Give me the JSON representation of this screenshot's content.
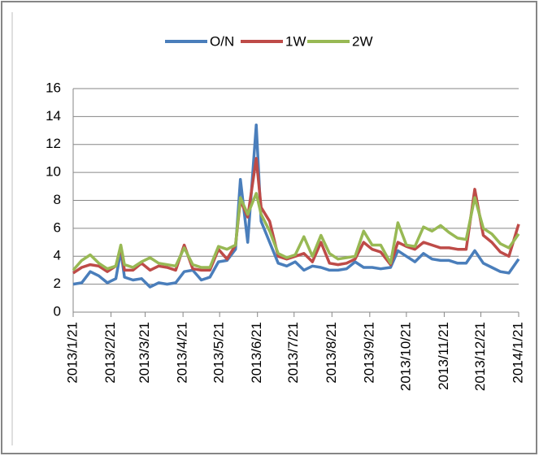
{
  "chart_data": {
    "type": "line",
    "x": [
      "2013/1/21",
      "2013/1/28",
      "2013/2/4",
      "2013/2/11",
      "2013/2/18",
      "2013/2/25",
      "2013/3/1",
      "2013/3/4",
      "2013/3/11",
      "2013/3/18",
      "2013/3/25",
      "2013/4/1",
      "2013/4/8",
      "2013/4/15",
      "2013/4/22",
      "2013/4/29",
      "2013/5/6",
      "2013/5/13",
      "2013/5/20",
      "2013/5/27",
      "2013/6/3",
      "2013/6/7",
      "2013/6/13",
      "2013/6/20",
      "2013/6/24",
      "2013/7/1",
      "2013/7/8",
      "2013/7/15",
      "2013/7/22",
      "2013/7/29",
      "2013/8/5",
      "2013/8/12",
      "2013/8/19",
      "2013/8/26",
      "2013/9/2",
      "2013/9/9",
      "2013/9/16",
      "2013/9/23",
      "2013/9/30",
      "2013/10/8",
      "2013/10/14",
      "2013/10/21",
      "2013/10/28",
      "2013/11/4",
      "2013/11/11",
      "2013/11/18",
      "2013/11/25",
      "2013/12/2",
      "2013/12/9",
      "2013/12/16",
      "2013/12/23",
      "2013/12/30",
      "2014/1/6",
      "2014/1/13",
      "2014/1/21"
    ],
    "series": [
      {
        "name": "O/N",
        "color": "#4a7ebb",
        "values": [
          2.0,
          2.1,
          2.9,
          2.6,
          2.1,
          2.4,
          4.4,
          2.5,
          2.3,
          2.4,
          1.8,
          2.1,
          2.0,
          2.1,
          2.9,
          3.0,
          2.3,
          2.5,
          3.6,
          3.7,
          4.5,
          9.5,
          5.0,
          13.4,
          6.5,
          5.0,
          3.5,
          3.3,
          3.6,
          3.0,
          3.3,
          3.2,
          3.0,
          3.0,
          3.1,
          3.6,
          3.2,
          3.2,
          3.1,
          3.2,
          4.4,
          4.0,
          3.6,
          4.2,
          3.8,
          3.7,
          3.7,
          3.5,
          3.5,
          4.4,
          3.5,
          3.2,
          2.9,
          2.8,
          3.8
        ]
      },
      {
        "name": "1W",
        "color": "#be4b48",
        "values": [
          2.8,
          3.2,
          3.4,
          3.3,
          2.9,
          3.3,
          4.7,
          3.0,
          3.0,
          3.5,
          3.0,
          3.3,
          3.2,
          3.0,
          4.8,
          3.1,
          3.0,
          3.0,
          4.5,
          3.8,
          4.8,
          8.0,
          6.8,
          11.0,
          7.5,
          6.5,
          4.0,
          3.8,
          4.0,
          4.2,
          3.6,
          5.0,
          3.5,
          3.4,
          3.5,
          3.8,
          5.0,
          4.5,
          4.3,
          3.4,
          5.0,
          4.7,
          4.5,
          5.0,
          4.8,
          4.6,
          4.6,
          4.5,
          4.5,
          8.8,
          5.5,
          5.0,
          4.3,
          4.0,
          6.3
        ]
      },
      {
        "name": "2W",
        "color": "#98b954",
        "values": [
          3.0,
          3.7,
          4.1,
          3.5,
          3.1,
          3.3,
          4.8,
          3.4,
          3.2,
          3.6,
          3.9,
          3.5,
          3.4,
          3.3,
          4.6,
          3.4,
          3.2,
          3.2,
          4.7,
          4.5,
          4.8,
          8.2,
          7.0,
          8.5,
          7.0,
          5.8,
          4.2,
          3.9,
          4.1,
          5.4,
          4.0,
          5.5,
          4.2,
          3.8,
          3.9,
          4.0,
          5.8,
          4.8,
          4.8,
          3.5,
          6.4,
          4.8,
          4.7,
          6.1,
          5.8,
          6.2,
          5.7,
          5.3,
          5.2,
          8.2,
          6.0,
          5.6,
          4.9,
          4.6,
          5.6
        ]
      }
    ],
    "xlim": [
      "2013/1/21",
      "2014/1/21"
    ],
    "xticks": [
      "2013/1/21",
      "2013/2/21",
      "2013/3/21",
      "2013/4/21",
      "2013/5/21",
      "2013/6/21",
      "2013/7/21",
      "2013/8/21",
      "2013/9/21",
      "2013/10/21",
      "2013/11/21",
      "2013/12/21",
      "2014/1/21"
    ],
    "ylim": [
      0,
      16
    ],
    "yticks": [
      0,
      2,
      4,
      6,
      8,
      10,
      12,
      14,
      16
    ],
    "grid": true,
    "legend": "top"
  }
}
